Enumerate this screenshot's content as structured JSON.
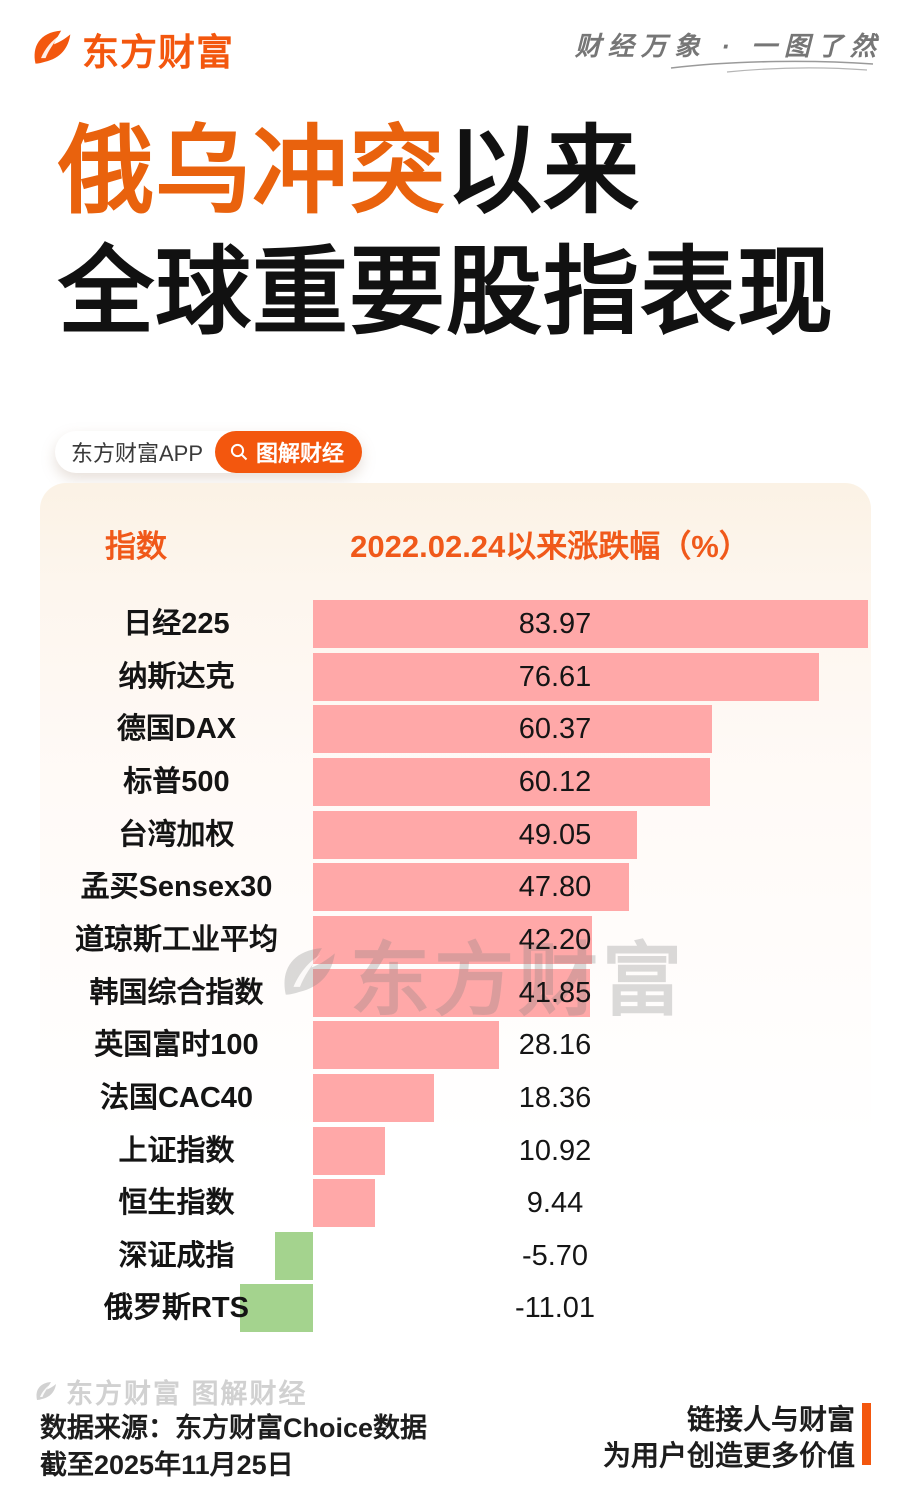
{
  "brand": {
    "logo_text": "东方财富",
    "slogan": "财经万象 · 一图了然"
  },
  "title": {
    "highlight": "俄乌冲突",
    "rest": "以来",
    "line2": "全球重要股指表现"
  },
  "app_tag": {
    "app_label": "东方财富APP",
    "button_label": "图解财经"
  },
  "chart_data": {
    "type": "bar",
    "title": "俄乌冲突以来全球重要股指表现",
    "orientation": "horizontal",
    "column_headers": {
      "index": "指数",
      "value": "2022.02.24以来涨跌幅（%）"
    },
    "baseline_date": "2022.02.24",
    "unit": "%",
    "categories": [
      "日经225",
      "纳斯达克",
      "德国DAX",
      "标普500",
      "台湾加权",
      "孟买Sensex30",
      "道琼斯工业平均",
      "韩国综合指数",
      "英国富时100",
      "法国CAC40",
      "上证指数",
      "恒生指数",
      "深证成指",
      "俄罗斯RTS"
    ],
    "values": [
      83.97,
      76.61,
      60.37,
      60.12,
      49.05,
      47.8,
      42.2,
      41.85,
      28.16,
      18.36,
      10.92,
      9.44,
      -5.7,
      -11.01
    ],
    "value_labels": [
      "83.97",
      "76.61",
      "60.37",
      "60.12",
      "49.05",
      "47.80",
      "42.20",
      "41.85",
      "28.16",
      "18.36",
      "10.92",
      "9.44",
      "-5.70",
      "-11.01"
    ],
    "positive_color": "#FFA8A8",
    "negative_color": "#A4D38E",
    "grid": false,
    "legend": false,
    "xlim": [
      -12,
      85
    ]
  },
  "watermarks": {
    "center_text": "东方财富",
    "footer_text": "东方财富 图解财经"
  },
  "footer": {
    "source_line1": "数据来源：东方财富Choice数据",
    "source_line2": "截至2025年11月25日",
    "slogan_line1": "链接人与财富",
    "slogan_line2": "为用户创造更多价值"
  },
  "colors": {
    "brand_orange": "#F3570E",
    "title_highlight": "#E9620D",
    "header_text": "#F0591A",
    "bar_positive": "#FFA8A8",
    "bar_negative": "#A4D38E",
    "text_dark": "#141414",
    "watermark_gray": "#c9c9c9"
  }
}
